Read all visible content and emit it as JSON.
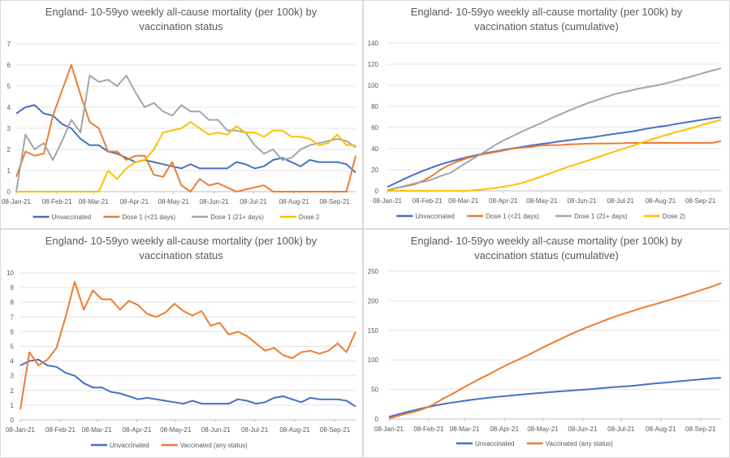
{
  "chart_data": [
    {
      "type": "line",
      "title": [
        "England- 10-59yo weekly all-cause mortality (per 100k) by",
        "vaccination status"
      ],
      "xlabel": "",
      "ylabel": "",
      "x_start": "08-Jan-21",
      "x_interval": "weekly",
      "x_ticks": [
        "08-Jan-21",
        "08-Feb-21",
        "08-Mar-21",
        "08-Apr-21",
        "08-May-21",
        "08-Jun-21",
        "08-Jul-21",
        "08-Aug-21",
        "08-Sep-21"
      ],
      "x_tick_days": [
        0,
        31,
        59,
        90,
        120,
        151,
        181,
        212,
        243
      ],
      "ylim": [
        0,
        7
      ],
      "y_ticks": [
        "0",
        "1",
        "2",
        "3",
        "4",
        "5",
        "6",
        "7"
      ],
      "grid": true,
      "legend_position": "bottom",
      "series": [
        {
          "name": "Unvaccinated",
          "color": "#4472C4",
          "values": [
            3.7,
            4.0,
            4.1,
            3.7,
            3.6,
            3.2,
            3.0,
            2.5,
            2.2,
            2.2,
            1.9,
            1.8,
            1.6,
            1.4,
            1.5,
            1.4,
            1.3,
            1.2,
            1.1,
            1.3,
            1.1,
            1.1,
            1.1,
            1.1,
            1.4,
            1.3,
            1.1,
            1.2,
            1.5,
            1.6,
            1.4,
            1.2,
            1.5,
            1.4,
            1.4,
            1.4,
            1.3,
            0.9
          ]
        },
        {
          "name": "Dose 1 (<21 days)",
          "color": "#ED7D31",
          "values": [
            0.7,
            1.9,
            1.7,
            1.8,
            3.6,
            4.8,
            6.0,
            4.6,
            3.3,
            3.0,
            1.9,
            1.9,
            1.5,
            1.7,
            1.7,
            0.8,
            0.7,
            1.4,
            0.3,
            0.0,
            0.6,
            0.3,
            0.4,
            0.2,
            0.0,
            0.1,
            0.2,
            0.3,
            0,
            0,
            0,
            0,
            0,
            0,
            0,
            0,
            0,
            1.7
          ]
        },
        {
          "name": "Dose 1 (21+ days)",
          "color": "#A5A5A5",
          "values": [
            0,
            2.7,
            2.0,
            2.3,
            1.5,
            2.4,
            3.4,
            2.8,
            5.5,
            5.2,
            5.3,
            5.0,
            5.5,
            4.7,
            4.0,
            4.2,
            3.8,
            3.6,
            4.1,
            3.8,
            3.8,
            3.4,
            3.4,
            2.9,
            2.9,
            2.8,
            2.2,
            1.8,
            2.0,
            1.5,
            1.6,
            2.0,
            2.2,
            2.3,
            2.4,
            2.5,
            2.4,
            2.1
          ]
        },
        {
          "name": "Dose 2",
          "color": "#FFC000",
          "values": [
            0,
            0,
            0,
            0,
            0,
            0,
            0,
            0,
            0,
            0,
            1.0,
            0.6,
            1.1,
            1.4,
            1.5,
            2.0,
            2.8,
            2.9,
            3.0,
            3.3,
            3.0,
            2.7,
            2.8,
            2.7,
            3.1,
            2.8,
            2.8,
            2.6,
            2.9,
            2.9,
            2.6,
            2.6,
            2.5,
            2.2,
            2.3,
            2.7,
            2.2,
            2.2
          ]
        }
      ]
    },
    {
      "type": "line",
      "title": [
        "England- 10-59yo weekly all-cause mortality (per 100k) by",
        "vaccination status (cumulative)"
      ],
      "xlabel": "",
      "ylabel": "",
      "x_start": "08-Jan-21",
      "x_interval": "weekly",
      "x_ticks": [
        "08-Jan-21",
        "08-Feb-21",
        "08-Mar-21",
        "08-Apr-21",
        "08-May-21",
        "08-Jun-21",
        "08-Jul-21",
        "08-Aug-21",
        "08-Sep-21"
      ],
      "x_tick_days": [
        0,
        31,
        59,
        90,
        120,
        151,
        181,
        212,
        243
      ],
      "ylim": [
        0,
        140
      ],
      "y_ticks": [
        "0",
        "20",
        "40",
        "60",
        "80",
        "100",
        "120",
        "140"
      ],
      "grid": true,
      "legend_position": "bottom",
      "series": [
        {
          "name": "Unvaccinated",
          "color": "#4472C4",
          "values": [
            3.7,
            7.7,
            11.8,
            15.5,
            19.1,
            22.3,
            25.3,
            27.8,
            30.0,
            32.2,
            34.1,
            35.9,
            37.5,
            38.9,
            40.4,
            41.8,
            43.1,
            44.3,
            45.4,
            46.7,
            47.8,
            48.9,
            50.0,
            51.1,
            52.5,
            53.8,
            54.9,
            56.1,
            57.6,
            59.2,
            60.6,
            61.8,
            63.3,
            64.7,
            66.1,
            67.5,
            68.8,
            69.7
          ]
        },
        {
          "name": "Dose 1 (<21 days)",
          "color": "#ED7D31",
          "values": [
            0.7,
            2.6,
            4.3,
            6.1,
            9.7,
            14.5,
            20.5,
            25.1,
            28.4,
            31.4,
            33.3,
            35.2,
            36.7,
            38.4,
            40.1,
            40.9,
            41.6,
            43.0,
            43.3,
            43.3,
            43.9,
            44.2,
            44.6,
            44.8,
            44.8,
            44.9,
            45.1,
            45.4,
            45.4,
            45.4,
            45.4,
            45.4,
            45.4,
            45.4,
            45.4,
            45.4,
            45.4,
            47.1
          ]
        },
        {
          "name": "Dose 1 (21+ days)",
          "color": "#A5A5A5",
          "values": [
            0,
            2.7,
            4.7,
            7.0,
            8.5,
            10.9,
            14.3,
            17.1,
            22.6,
            27.8,
            33.1,
            38.1,
            43.6,
            48.3,
            52.3,
            56.5,
            60.3,
            63.9,
            68.0,
            71.8,
            75.6,
            79.0,
            82.4,
            85.3,
            88.2,
            91.0,
            93.2,
            95.0,
            97.0,
            98.5,
            100.1,
            102.1,
            104.3,
            106.6,
            109.0,
            111.5,
            113.9,
            116.0
          ]
        },
        {
          "name": "Dose 2)",
          "color": "#FFC000",
          "values": [
            0,
            0,
            0,
            0,
            0,
            0,
            0,
            0,
            0,
            0,
            1.0,
            1.6,
            2.7,
            4.1,
            5.6,
            7.6,
            10.4,
            13.3,
            16.3,
            19.6,
            22.6,
            25.3,
            28.1,
            30.8,
            33.9,
            36.7,
            39.5,
            42.1,
            45.0,
            47.9,
            50.5,
            53.1,
            55.6,
            57.8,
            60.1,
            62.8,
            65.0,
            67.2
          ]
        }
      ]
    },
    {
      "type": "line",
      "title": [
        "England- 10-59yo weekly all-cause mortality (per 100k) by",
        "vaccination status"
      ],
      "xlabel": "",
      "ylabel": "",
      "x_start": "08-Jan-21",
      "x_interval": "weekly",
      "x_ticks": [
        "08-Jan-21",
        "08-Feb-21",
        "08-Mar-21",
        "08-Apr-21",
        "08-May-21",
        "08-Jun-21",
        "08-Jul-21",
        "08-Aug-21",
        "08-Sep-21"
      ],
      "x_tick_days": [
        0,
        31,
        59,
        90,
        120,
        151,
        181,
        212,
        243
      ],
      "ylim": [
        0,
        10
      ],
      "y_ticks": [
        "0",
        "1",
        "2",
        "3",
        "4",
        "5",
        "6",
        "7",
        "8",
        "9",
        "10"
      ],
      "grid": true,
      "legend_position": "bottom",
      "series": [
        {
          "name": "Unvaccinated",
          "color": "#4472C4",
          "values": [
            3.7,
            4.0,
            4.1,
            3.7,
            3.6,
            3.2,
            3.0,
            2.5,
            2.2,
            2.2,
            1.9,
            1.8,
            1.6,
            1.4,
            1.5,
            1.4,
            1.3,
            1.2,
            1.1,
            1.3,
            1.1,
            1.1,
            1.1,
            1.1,
            1.4,
            1.3,
            1.1,
            1.2,
            1.5,
            1.6,
            1.4,
            1.2,
            1.5,
            1.4,
            1.4,
            1.4,
            1.3,
            0.9
          ]
        },
        {
          "name": "Vaccinated (any status)",
          "color": "#ED7D31",
          "values": [
            0.7,
            4.6,
            3.7,
            4.1,
            4.9,
            7.0,
            9.4,
            7.5,
            8.8,
            8.2,
            8.2,
            7.5,
            8.1,
            7.8,
            7.2,
            7.0,
            7.3,
            7.9,
            7.4,
            7.1,
            7.4,
            6.4,
            6.6,
            5.8,
            6.0,
            5.7,
            5.2,
            4.7,
            4.9,
            4.4,
            4.2,
            4.6,
            4.7,
            4.5,
            4.7,
            5.2,
            4.6,
            6.0
          ]
        }
      ]
    },
    {
      "type": "line",
      "title": [
        "England- 10-59yo weekly all-cause mortality (per 100k) by",
        "vaccination status (cumulative)"
      ],
      "xlabel": "",
      "ylabel": "",
      "x_start": "08-Jan-21",
      "x_interval": "weekly",
      "x_ticks": [
        "08-Jan-21",
        "08-Feb-21",
        "08-Mar-21",
        "08-Apr-21",
        "08-May-21",
        "08-Jun-21",
        "08-Jul-21",
        "08-Aug-21",
        "08-Sep-21"
      ],
      "x_tick_days": [
        0,
        31,
        59,
        90,
        120,
        151,
        181,
        212,
        243
      ],
      "ylim": [
        0,
        250
      ],
      "y_ticks": [
        "0",
        "50",
        "100",
        "150",
        "200",
        "250"
      ],
      "grid": true,
      "legend_position": "bottom",
      "series": [
        {
          "name": "Unvaccinated",
          "color": "#4472C4",
          "values": [
            3.7,
            7.7,
            11.8,
            15.5,
            19.1,
            22.3,
            25.3,
            27.8,
            30.0,
            32.2,
            34.1,
            35.9,
            37.5,
            38.9,
            40.4,
            41.8,
            43.1,
            44.3,
            45.4,
            46.7,
            47.8,
            48.9,
            50.0,
            51.1,
            52.5,
            53.8,
            54.9,
            56.1,
            57.6,
            59.2,
            60.6,
            61.8,
            63.3,
            64.7,
            66.1,
            67.5,
            68.8,
            69.7
          ]
        },
        {
          "name": "Vaccinated (any status)",
          "color": "#ED7D31",
          "values": [
            0.7,
            5.3,
            9.0,
            13.1,
            18.0,
            25.0,
            34.4,
            41.9,
            50.7,
            58.9,
            67.1,
            74.6,
            82.7,
            90.5,
            97.7,
            104.7,
            112.0,
            119.9,
            127.3,
            134.4,
            141.8,
            148.2,
            154.8,
            160.6,
            166.6,
            172.3,
            177.5,
            182.2,
            187.1,
            191.5,
            195.7,
            200.3,
            205.0,
            209.5,
            214.2,
            219.4,
            224.0,
            230.0
          ]
        }
      ]
    }
  ]
}
